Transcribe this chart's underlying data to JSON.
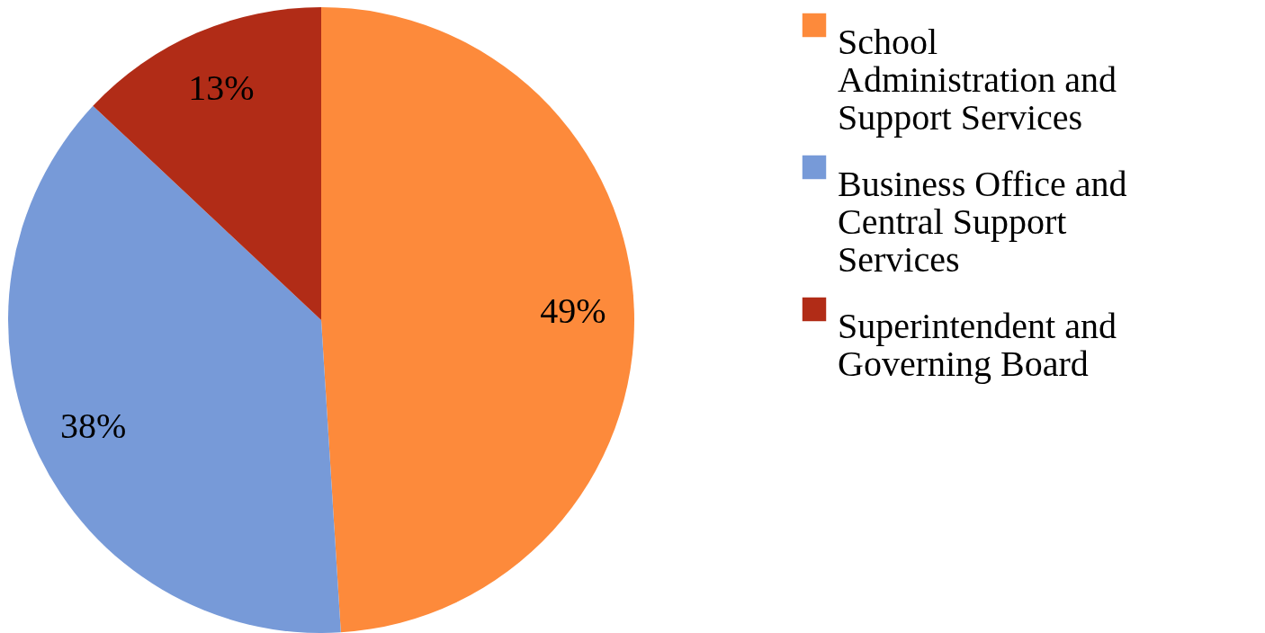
{
  "chart_data": {
    "type": "pie",
    "categories": [
      "School Administration and Support Services",
      "Business Office and Central Support Services",
      "Superintendent and Governing Board"
    ],
    "values": [
      49,
      38,
      13
    ],
    "colors": [
      "#fd8a3b",
      "#779ad8",
      "#b12c17"
    ],
    "value_labels": [
      "49%",
      "38%",
      "13%"
    ],
    "legend": "right"
  }
}
